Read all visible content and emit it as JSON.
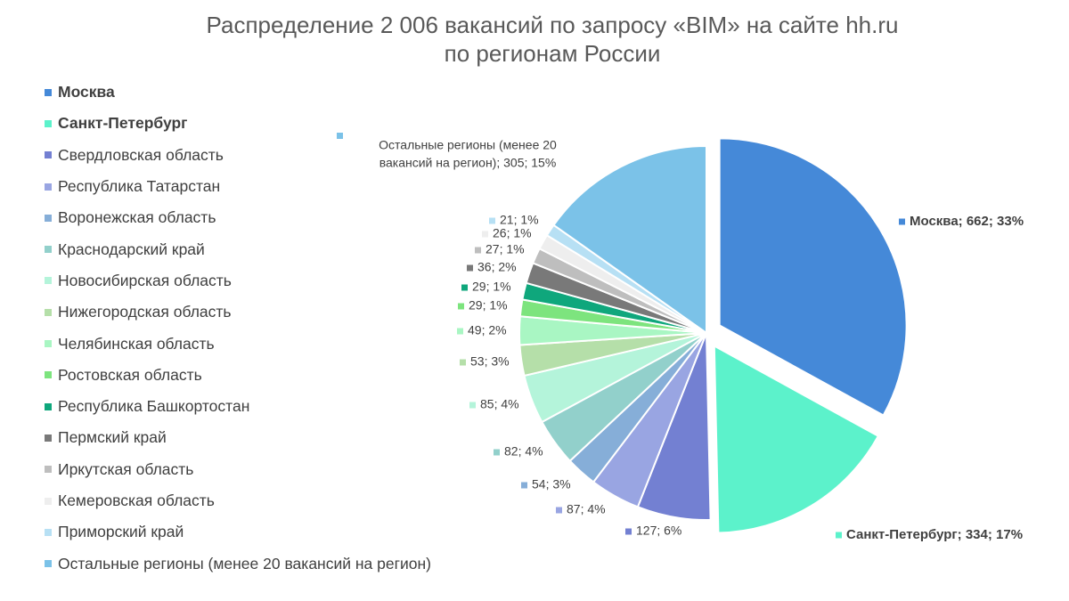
{
  "chart_data": {
    "type": "pie",
    "title_line1": "Распределение 2 006 вакансий по запросу «BIM» на сайте hh.ru",
    "title_line2": "по регионам России",
    "legend_position": "left",
    "slices": [
      {
        "name": "Москва",
        "value": 662,
        "percent": "33%",
        "color": "#4589D8",
        "bold": true,
        "exploded": true
      },
      {
        "name": "Санкт-Петербург",
        "value": 334,
        "percent": "17%",
        "color": "#5CF2CB",
        "bold": true,
        "exploded": true
      },
      {
        "name": "Свердловская область",
        "value": 127,
        "percent": "6%",
        "color": "#7380D2",
        "bold": false
      },
      {
        "name": "Республика Татарстан",
        "value": 87,
        "percent": "4%",
        "color": "#99A5E2",
        "bold": false
      },
      {
        "name": "Воронежская область",
        "value": 54,
        "percent": "3%",
        "color": "#86AED8",
        "bold": false
      },
      {
        "name": "Краснодарский край",
        "value": 82,
        "percent": "4%",
        "color": "#92D0CB",
        "bold": false
      },
      {
        "name": "Новосибирская область",
        "value": 85,
        "percent": "4%",
        "color": "#B4F4DA",
        "bold": false
      },
      {
        "name": "Нижегородская область",
        "value": 53,
        "percent": "3%",
        "color": "#B5DFA9",
        "bold": false
      },
      {
        "name": "Челябинская область",
        "value": 49,
        "percent": "2%",
        "color": "#A9F6C3",
        "bold": false
      },
      {
        "name": "Ростовская область",
        "value": 29,
        "percent": "1%",
        "color": "#7DE47E",
        "bold": false
      },
      {
        "name": "Республика Башкортостан",
        "value": 29,
        "percent": "1%",
        "color": "#0FA77C",
        "bold": false
      },
      {
        "name": "Пермский край",
        "value": 36,
        "percent": "2%",
        "color": "#797979",
        "bold": false
      },
      {
        "name": "Иркутская область",
        "value": 27,
        "percent": "1%",
        "color": "#BEBEBE",
        "bold": false
      },
      {
        "name": "Кемеровская область",
        "value": 26,
        "percent": "1%",
        "color": "#EEEEEE",
        "bold": false
      },
      {
        "name": "Приморский край",
        "value": 21,
        "percent": "1%",
        "color": "#B7E0F4",
        "bold": false
      },
      {
        "name": "Остальные регионы (менее 20 вакансий на регион)",
        "value": 305,
        "percent": "15%",
        "color": "#7BC2E8",
        "bold": false
      }
    ],
    "data_labels": [
      "Москва; 662; 33%",
      "Санкт-Петербург; 334; 17%",
      "127; 6%",
      "87; 4%",
      "54; 3%",
      "82; 4%",
      "85; 4%",
      "53; 3%",
      "49; 2%",
      "29; 1%",
      "29; 1%",
      "36; 2%",
      "27; 1%",
      "26; 1%",
      "21; 1%",
      "Остальные регионы (менее 20 вакансий на регион); 305; 15%"
    ],
    "other_label_lines": [
      "Остальные регионы (менее 20",
      "вакансий на регион); 305; 15%"
    ]
  }
}
